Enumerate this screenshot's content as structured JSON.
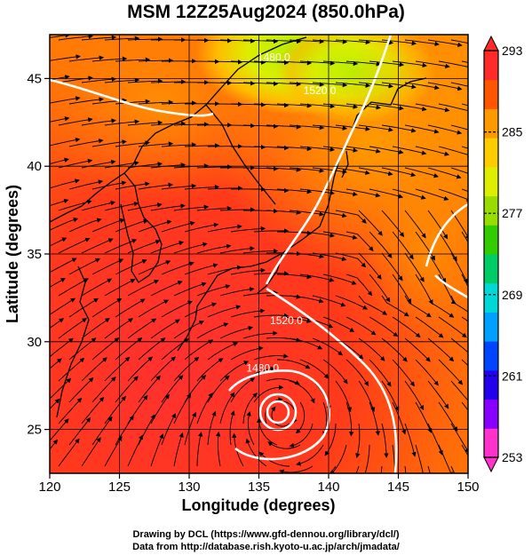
{
  "title": "MSM 12Z25Aug2024 (850.0hPa)",
  "credits": [
    "Drawing by DCL (https://www.gfd-dennou.org/library/dcl/)",
    "Data from http://database.rish.kyoto-u.ac.jp/arch/jmadata/"
  ],
  "chart_data": {
    "type": "heatmap",
    "xlabel": "Longitude (degrees)",
    "ylabel": "Latitude  (degrees)",
    "xlim": [
      120,
      150
    ],
    "ylim": [
      22.5,
      47.5
    ],
    "x_ticks": [
      120,
      125,
      130,
      135,
      140,
      145,
      150
    ],
    "y_ticks": [
      25,
      30,
      35,
      40,
      45
    ],
    "colorbar": {
      "min": 253,
      "max": 293,
      "ticks": [
        293,
        285,
        277,
        269,
        261,
        253
      ],
      "colors": [
        "#ff33cc",
        "#8800ff",
        "#2200ee",
        "#0044ff",
        "#00a0ff",
        "#00d8d8",
        "#00cc66",
        "#33cc00",
        "#99dd00",
        "#ddee00",
        "#ffcc00",
        "#ff9900",
        "#ff5500",
        "#ff2a2a"
      ]
    },
    "contours": [
      {
        "label": "1480.0",
        "lon": 134.9,
        "lat": 46.0
      },
      {
        "label": "1520.0",
        "lon": 138.2,
        "lat": 44.1
      },
      {
        "label": "1520.0",
        "lon": 135.8,
        "lat": 31.0
      },
      {
        "label": "1480.0",
        "lon": 134.1,
        "lat": 28.3
      }
    ],
    "typhoon_center": {
      "lon": 136.5,
      "lat": 26.3
    },
    "grid": true
  }
}
